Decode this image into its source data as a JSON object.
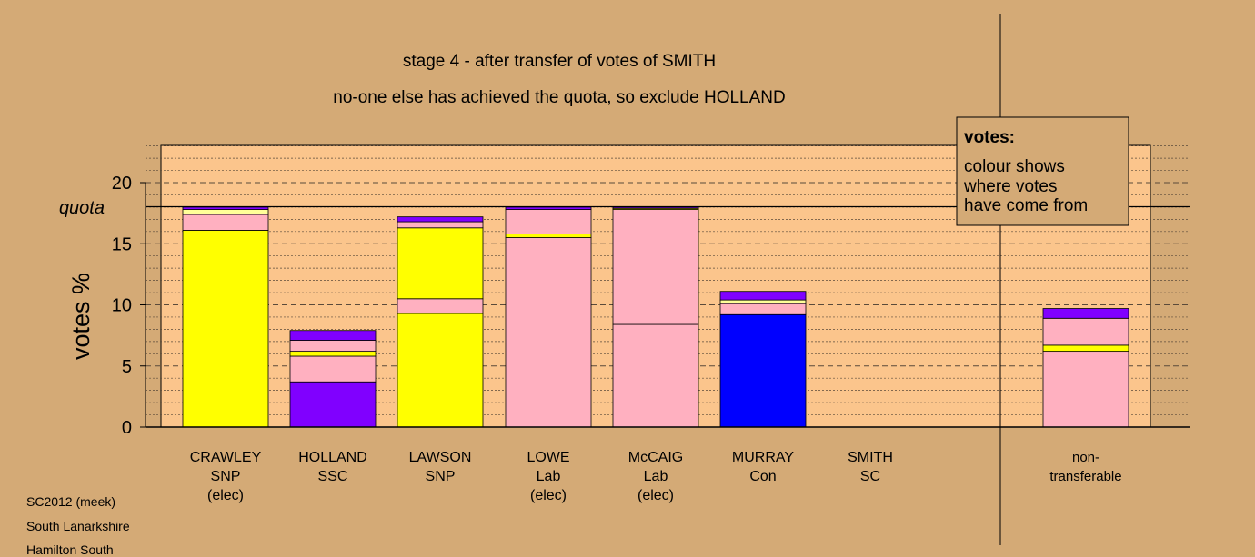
{
  "chart_data": {
    "type": "bar",
    "stacked": true,
    "title": "stage 4 - after transfer of votes of SMITH",
    "subtitle": "no-one else has achieved the quota, so exclude HOLLAND",
    "ylabel": "votes %",
    "ylim": [
      0,
      23
    ],
    "yticks": [
      0,
      5,
      10,
      15,
      20
    ],
    "quota": 18,
    "quota_label": "quota",
    "grid": "dotted every 1, dashed every 5",
    "legend_position": "top-right",
    "legend": {
      "title": "votes:",
      "lines": [
        "colour shows",
        "where votes",
        "have come from"
      ]
    },
    "candidates": [
      {
        "label": [
          "CRAWLEY",
          "SNP",
          "(elec)"
        ],
        "segments": [
          {
            "value": 16.1,
            "color": "#ffff00"
          },
          {
            "value": 1.3,
            "color": "#ffb0c0"
          },
          {
            "value": 0.4,
            "color": "#ffff99"
          },
          {
            "value": 0.2,
            "color": "#8000ff"
          }
        ]
      },
      {
        "label": [
          "HOLLAND",
          "SSC"
        ],
        "segments": [
          {
            "value": 3.7,
            "color": "#8000ff"
          },
          {
            "value": 2.1,
            "color": "#ffb0c0"
          },
          {
            "value": 0.4,
            "color": "#ffff00"
          },
          {
            "value": 0.9,
            "color": "#ffb0c0"
          },
          {
            "value": 0.8,
            "color": "#8000ff"
          }
        ]
      },
      {
        "label": [
          "LAWSON",
          "SNP"
        ],
        "segments": [
          {
            "value": 9.3,
            "color": "#ffff00"
          },
          {
            "value": 1.2,
            "color": "#ffb0c0"
          },
          {
            "value": 5.8,
            "color": "#ffff00"
          },
          {
            "value": 0.5,
            "color": "#ffb0c0"
          },
          {
            "value": 0.4,
            "color": "#8000ff"
          }
        ]
      },
      {
        "label": [
          "LOWE",
          "Lab",
          "(elec)"
        ],
        "segments": [
          {
            "value": 15.5,
            "color": "#ffb0c0"
          },
          {
            "value": 0.3,
            "color": "#ffff00"
          },
          {
            "value": 2.0,
            "color": "#ffb0c0"
          },
          {
            "value": 0.2,
            "color": "#8000ff"
          }
        ]
      },
      {
        "label": [
          "McCAIG",
          "Lab",
          "(elec)"
        ],
        "segments": [
          {
            "value": 8.4,
            "color": "#ffb0c0"
          },
          {
            "value": 9.4,
            "color": "#ffb0c0"
          },
          {
            "value": 0.1,
            "color": "#ffff00"
          },
          {
            "value": 0.1,
            "color": "#8000ff"
          }
        ]
      },
      {
        "label": [
          "MURRAY",
          "Con"
        ],
        "segments": [
          {
            "value": 9.2,
            "color": "#0000ff"
          },
          {
            "value": 0.9,
            "color": "#ffb0c0"
          },
          {
            "value": 0.3,
            "color": "#ffff99"
          },
          {
            "value": 0.7,
            "color": "#8000ff"
          }
        ]
      },
      {
        "label": [
          "SMITH",
          "SC"
        ],
        "segments": []
      },
      {
        "label": [
          "non-",
          "transferable"
        ],
        "segments": [
          {
            "value": 6.2,
            "color": "#ffb0c0"
          },
          {
            "value": 0.5,
            "color": "#ffff00"
          },
          {
            "value": 2.2,
            "color": "#ffb0c0"
          },
          {
            "value": 0.8,
            "color": "#8000ff"
          }
        ]
      }
    ]
  },
  "footer": {
    "line1": "SC2012 (meek)",
    "line2": "South Lanarkshire",
    "line3": "Hamilton South"
  },
  "colors": {
    "page_bg": "#d4aa76",
    "panel_bg": "#fbc58c",
    "legend_bg": "#d4aa76"
  }
}
